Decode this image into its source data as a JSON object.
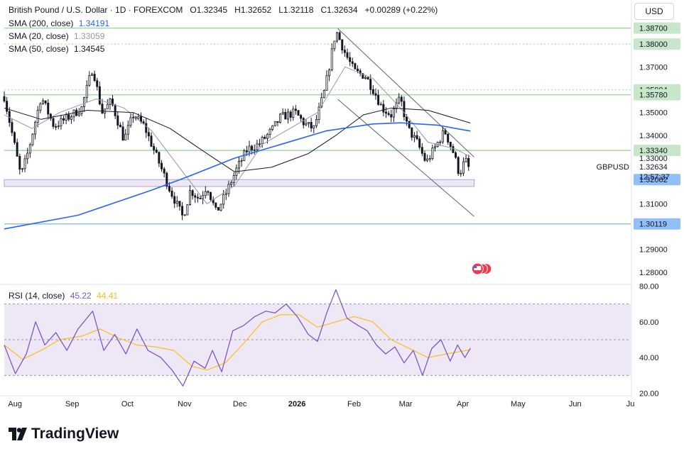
{
  "header": {
    "symbol_title": "British Pound / U.S. Dollar · 1D · FOREXCOM",
    "ohlc": [
      {
        "key": "O",
        "value": "1.32345"
      },
      {
        "key": "H",
        "value": "1.32652"
      },
      {
        "key": "L",
        "value": "1.32118"
      },
      {
        "key": "C",
        "value": "1.32634"
      }
    ],
    "change": "+0.00289 (+0.22%)",
    "currency_button": "USD"
  },
  "indicators": [
    {
      "label": "SMA (200, close)",
      "value": "1.34191",
      "color": "#2962ff"
    },
    {
      "label": "SMA (20, close)",
      "value": "1.33059",
      "color": "#b2b5be"
    },
    {
      "label": "SMA (50, close)",
      "value": "1.34545",
      "color": "#131722"
    }
  ],
  "rsi_legend": {
    "label": "RSI (14, close)",
    "value": "45.22",
    "ma_value": "44.41"
  },
  "footer": {
    "brand": "TradingView"
  },
  "chart_data": {
    "type": "candlestick",
    "symbol": "GBPUSD",
    "current_price": "1.32634",
    "countdown": "12:57:37",
    "price_axis": {
      "range": [
        1.275,
        1.39
      ],
      "ticks": [
        {
          "value": 1.387,
          "label": "1.38700",
          "highlight": "green"
        },
        {
          "value": 1.38,
          "label": "1.38000",
          "highlight": "green"
        },
        {
          "value": 1.37,
          "label": "1.37000"
        },
        {
          "value": 1.35994,
          "label": "1.35994",
          "highlight": "green"
        },
        {
          "value": 1.3578,
          "label": "1.35780",
          "highlight": "green"
        },
        {
          "value": 1.35,
          "label": "1.35000"
        },
        {
          "value": 1.34,
          "label": "1.34000"
        },
        {
          "value": 1.3334,
          "label": "1.33340",
          "highlight": "green"
        },
        {
          "value": 1.33,
          "label": "1.33000"
        },
        {
          "value": 1.31,
          "label": "1.31000"
        },
        {
          "value": 1.29,
          "label": "1.29000"
        },
        {
          "value": 1.28,
          "label": "1.28000"
        }
      ],
      "markers": [
        {
          "value": 1.32062,
          "label": "1.32062",
          "color": "#90bff9"
        },
        {
          "value": 1.30119,
          "label": "1.30119",
          "color": "#90bff9"
        }
      ]
    },
    "rsi_axis": {
      "range": [
        19,
        81
      ],
      "ticks": [
        {
          "value": 80,
          "label": "80.00"
        },
        {
          "value": 60,
          "label": "60.00"
        },
        {
          "value": 40,
          "label": "40.00"
        },
        {
          "value": 20,
          "label": "20.00"
        }
      ],
      "band": [
        30,
        70
      ],
      "mid": 50
    },
    "time_axis": {
      "labels": [
        {
          "label": "Aug",
          "day": 2
        },
        {
          "label": "Sep",
          "day": 33
        },
        {
          "label": "Oct",
          "day": 63
        },
        {
          "label": "Nov",
          "day": 94
        },
        {
          "label": "Dec",
          "day": 124
        },
        {
          "label": "2026",
          "day": 155,
          "bold": true
        },
        {
          "label": "Feb",
          "day": 186
        },
        {
          "label": "Mar",
          "day": 214
        },
        {
          "label": "Apr",
          "day": 245
        },
        {
          "label": "May",
          "day": 275
        },
        {
          "label": "Jun",
          "day": 306
        },
        {
          "label": "Ju",
          "day": 336
        }
      ],
      "total_days": 340
    },
    "horizontal_levels": [
      {
        "value": 1.387,
        "color": "#a5d6a7"
      },
      {
        "value": 1.3578,
        "color": "#a5d6a7"
      },
      {
        "value": 1.3334,
        "color": "#a5d6a7"
      },
      {
        "value": 1.30119,
        "color": "#90bff9"
      }
    ],
    "dotted_levels": [
      1.38,
      1.35994
    ],
    "support_zone": {
      "from": 1.3176,
      "to": 1.3206,
      "day_start": 0,
      "day_end": 255
    },
    "channel_lines": [
      {
        "start": {
          "day": 181,
          "price": 1.3868
        },
        "end": {
          "day": 255,
          "price": 1.3305
        }
      },
      {
        "start": {
          "day": 181,
          "price": 1.3558
        },
        "end": {
          "day": 255,
          "price": 1.3045
        }
      }
    ],
    "key_points": [
      {
        "day": 0,
        "price": 1.357
      },
      {
        "day": 5,
        "price": 1.338
      },
      {
        "day": 9,
        "price": 1.322
      },
      {
        "day": 13,
        "price": 1.333
      },
      {
        "day": 20,
        "price": 1.357
      },
      {
        "day": 27,
        "price": 1.344
      },
      {
        "day": 35,
        "price": 1.348
      },
      {
        "day": 42,
        "price": 1.352
      },
      {
        "day": 48,
        "price": 1.37
      },
      {
        "day": 53,
        "price": 1.35
      },
      {
        "day": 58,
        "price": 1.355
      },
      {
        "day": 65,
        "price": 1.338
      },
      {
        "day": 70,
        "price": 1.349
      },
      {
        "day": 76,
        "price": 1.344
      },
      {
        "day": 83,
        "price": 1.33
      },
      {
        "day": 90,
        "price": 1.316
      },
      {
        "day": 97,
        "price": 1.304
      },
      {
        "day": 101,
        "price": 1.316
      },
      {
        "day": 106,
        "price": 1.312
      },
      {
        "day": 110,
        "price": 1.318
      },
      {
        "day": 115,
        "price": 1.306
      },
      {
        "day": 120,
        "price": 1.314
      },
      {
        "day": 126,
        "price": 1.325
      },
      {
        "day": 132,
        "price": 1.334
      },
      {
        "day": 138,
        "price": 1.336
      },
      {
        "day": 145,
        "price": 1.342
      },
      {
        "day": 150,
        "price": 1.348
      },
      {
        "day": 158,
        "price": 1.35
      },
      {
        "day": 163,
        "price": 1.345
      },
      {
        "day": 168,
        "price": 1.343
      },
      {
        "day": 174,
        "price": 1.36
      },
      {
        "day": 180,
        "price": 1.386
      },
      {
        "day": 185,
        "price": 1.376
      },
      {
        "day": 190,
        "price": 1.368
      },
      {
        "day": 196,
        "price": 1.366
      },
      {
        "day": 201,
        "price": 1.359
      },
      {
        "day": 205,
        "price": 1.352
      },
      {
        "day": 210,
        "price": 1.349
      },
      {
        "day": 215,
        "price": 1.356
      },
      {
        "day": 219,
        "price": 1.343
      },
      {
        "day": 224,
        "price": 1.337
      },
      {
        "day": 229,
        "price": 1.328
      },
      {
        "day": 234,
        "price": 1.335
      },
      {
        "day": 239,
        "price": 1.342
      },
      {
        "day": 244,
        "price": 1.332
      },
      {
        "day": 247,
        "price": 1.323
      },
      {
        "day": 250,
        "price": 1.329
      },
      {
        "day": 253,
        "price": 1.3263
      }
    ],
    "sma200_points": [
      {
        "day": 0,
        "price": 1.299
      },
      {
        "day": 40,
        "price": 1.305
      },
      {
        "day": 80,
        "price": 1.316
      },
      {
        "day": 100,
        "price": 1.322
      },
      {
        "day": 125,
        "price": 1.33
      },
      {
        "day": 150,
        "price": 1.336
      },
      {
        "day": 175,
        "price": 1.342
      },
      {
        "day": 200,
        "price": 1.345
      },
      {
        "day": 215,
        "price": 1.3455
      },
      {
        "day": 235,
        "price": 1.3445
      },
      {
        "day": 253,
        "price": 1.3419
      }
    ],
    "sma50_points": [
      {
        "day": 0,
        "price": 1.352
      },
      {
        "day": 20,
        "price": 1.347
      },
      {
        "day": 45,
        "price": 1.351
      },
      {
        "day": 70,
        "price": 1.35
      },
      {
        "day": 90,
        "price": 1.343
      },
      {
        "day": 110,
        "price": 1.332
      },
      {
        "day": 125,
        "price": 1.324
      },
      {
        "day": 145,
        "price": 1.326
      },
      {
        "day": 165,
        "price": 1.332
      },
      {
        "day": 180,
        "price": 1.34
      },
      {
        "day": 195,
        "price": 1.349
      },
      {
        "day": 210,
        "price": 1.352
      },
      {
        "day": 230,
        "price": 1.351
      },
      {
        "day": 253,
        "price": 1.3454
      }
    ],
    "sma20_points": [
      {
        "day": 0,
        "price": 1.349
      },
      {
        "day": 15,
        "price": 1.343
      },
      {
        "day": 30,
        "price": 1.35
      },
      {
        "day": 50,
        "price": 1.356
      },
      {
        "day": 65,
        "price": 1.352
      },
      {
        "day": 80,
        "price": 1.342
      },
      {
        "day": 95,
        "price": 1.326
      },
      {
        "day": 110,
        "price": 1.31
      },
      {
        "day": 125,
        "price": 1.318
      },
      {
        "day": 140,
        "price": 1.336
      },
      {
        "day": 155,
        "price": 1.343
      },
      {
        "day": 170,
        "price": 1.35
      },
      {
        "day": 185,
        "price": 1.37
      },
      {
        "day": 200,
        "price": 1.365
      },
      {
        "day": 215,
        "price": 1.352
      },
      {
        "day": 230,
        "price": 1.337
      },
      {
        "day": 245,
        "price": 1.334
      },
      {
        "day": 253,
        "price": 1.3306
      }
    ],
    "rsi_points": [
      {
        "day": 0,
        "price": 47
      },
      {
        "day": 6,
        "price": 31
      },
      {
        "day": 12,
        "price": 42
      },
      {
        "day": 17,
        "price": 60
      },
      {
        "day": 22,
        "price": 47
      },
      {
        "day": 28,
        "price": 54
      },
      {
        "day": 34,
        "price": 44
      },
      {
        "day": 40,
        "price": 56
      },
      {
        "day": 48,
        "price": 66
      },
      {
        "day": 54,
        "price": 44
      },
      {
        "day": 60,
        "price": 53
      },
      {
        "day": 66,
        "price": 42
      },
      {
        "day": 72,
        "price": 56
      },
      {
        "day": 78,
        "price": 44
      },
      {
        "day": 85,
        "price": 40
      },
      {
        "day": 91,
        "price": 33
      },
      {
        "day": 97,
        "price": 24
      },
      {
        "day": 103,
        "price": 38
      },
      {
        "day": 109,
        "price": 34
      },
      {
        "day": 113,
        "price": 44
      },
      {
        "day": 118,
        "price": 32
      },
      {
        "day": 124,
        "price": 55
      },
      {
        "day": 130,
        "price": 58
      },
      {
        "day": 136,
        "price": 63
      },
      {
        "day": 142,
        "price": 66
      },
      {
        "day": 147,
        "price": 65
      },
      {
        "day": 153,
        "price": 70
      },
      {
        "day": 159,
        "price": 63
      },
      {
        "day": 165,
        "price": 53
      },
      {
        "day": 170,
        "price": 49
      },
      {
        "day": 175,
        "price": 65
      },
      {
        "day": 180,
        "price": 78
      },
      {
        "day": 186,
        "price": 62
      },
      {
        "day": 192,
        "price": 58
      },
      {
        "day": 197,
        "price": 55
      },
      {
        "day": 202,
        "price": 47
      },
      {
        "day": 207,
        "price": 42
      },
      {
        "day": 212,
        "price": 46
      },
      {
        "day": 217,
        "price": 37
      },
      {
        "day": 222,
        "price": 44
      },
      {
        "day": 227,
        "price": 30
      },
      {
        "day": 232,
        "price": 45
      },
      {
        "day": 237,
        "price": 50
      },
      {
        "day": 242,
        "price": 38
      },
      {
        "day": 246,
        "price": 47
      },
      {
        "day": 250,
        "price": 40
      },
      {
        "day": 253,
        "price": 45.22
      }
    ],
    "rsi_ma_points": [
      {
        "day": 0,
        "price": 47
      },
      {
        "day": 10,
        "price": 39
      },
      {
        "day": 20,
        "price": 44
      },
      {
        "day": 30,
        "price": 50
      },
      {
        "day": 42,
        "price": 52
      },
      {
        "day": 52,
        "price": 56
      },
      {
        "day": 62,
        "price": 51
      },
      {
        "day": 72,
        "price": 47
      },
      {
        "day": 82,
        "price": 46
      },
      {
        "day": 92,
        "price": 44
      },
      {
        "day": 102,
        "price": 35
      },
      {
        "day": 110,
        "price": 33
      },
      {
        "day": 120,
        "price": 37
      },
      {
        "day": 130,
        "price": 48
      },
      {
        "day": 140,
        "price": 60
      },
      {
        "day": 150,
        "price": 64
      },
      {
        "day": 160,
        "price": 64
      },
      {
        "day": 170,
        "price": 57
      },
      {
        "day": 180,
        "price": 60
      },
      {
        "day": 190,
        "price": 63
      },
      {
        "day": 200,
        "price": 60
      },
      {
        "day": 210,
        "price": 50
      },
      {
        "day": 220,
        "price": 45
      },
      {
        "day": 230,
        "price": 40
      },
      {
        "day": 240,
        "price": 42
      },
      {
        "day": 253,
        "price": 44.41
      }
    ],
    "colors": {
      "up": "#089981",
      "down": "#f23645",
      "candle": "#131722",
      "sma200": "#2962ff",
      "sma50": "#131722",
      "sma20": "#9598a1",
      "rsi": "#7e57c2",
      "rsi_ma": "#f7c01e",
      "rsi_band": "#ede7f6",
      "zone_fill": "#ede7f6",
      "zone_border": "#b39ddb",
      "green_label": "#c8e6c9",
      "blue_label": "#90bff9"
    }
  }
}
